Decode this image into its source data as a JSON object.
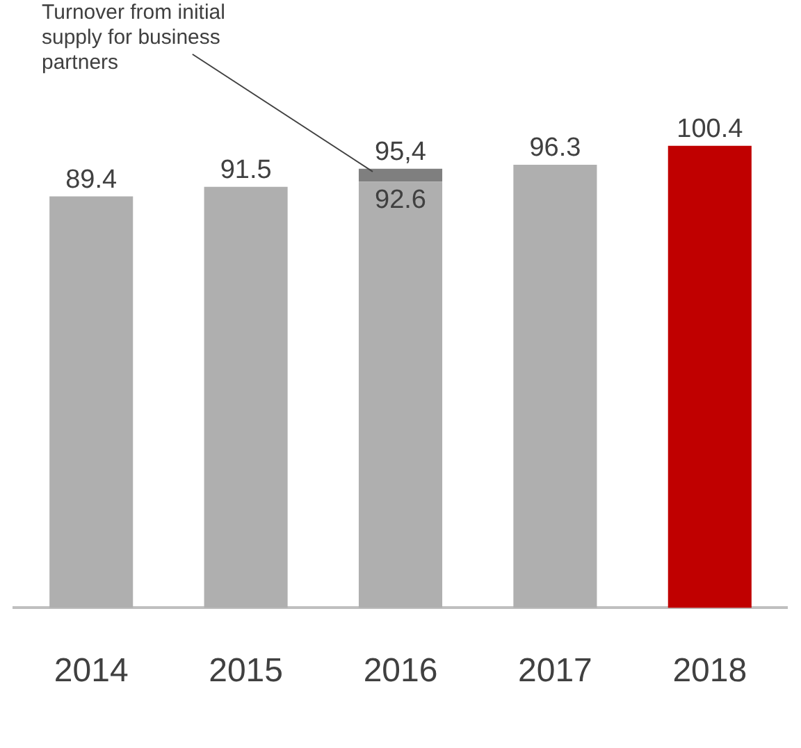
{
  "chart_data": {
    "type": "bar",
    "stacked": true,
    "categories": [
      "2014",
      "2015",
      "2016",
      "2017",
      "2018"
    ],
    "series": [
      {
        "colors": [
          "#afafaf",
          "#afafaf",
          "#afafaf",
          "#afafaf",
          "#c00000"
        ],
        "values": [
          89.4,
          91.5,
          92.6,
          96.3,
          100.4
        ],
        "value_labels": [
          "89.4",
          "91.5",
          "92.6",
          "96.3",
          "100.4"
        ]
      },
      {
        "color": "#7f7f7f",
        "values": [
          null,
          null,
          2.8,
          null,
          null
        ]
      }
    ],
    "totals": [
      null,
      null,
      "95,4",
      null,
      null
    ],
    "tick_labels": "x",
    "grid": false,
    "legend": false,
    "annotations": [
      "Turnover from initial supply for business partners"
    ]
  }
}
